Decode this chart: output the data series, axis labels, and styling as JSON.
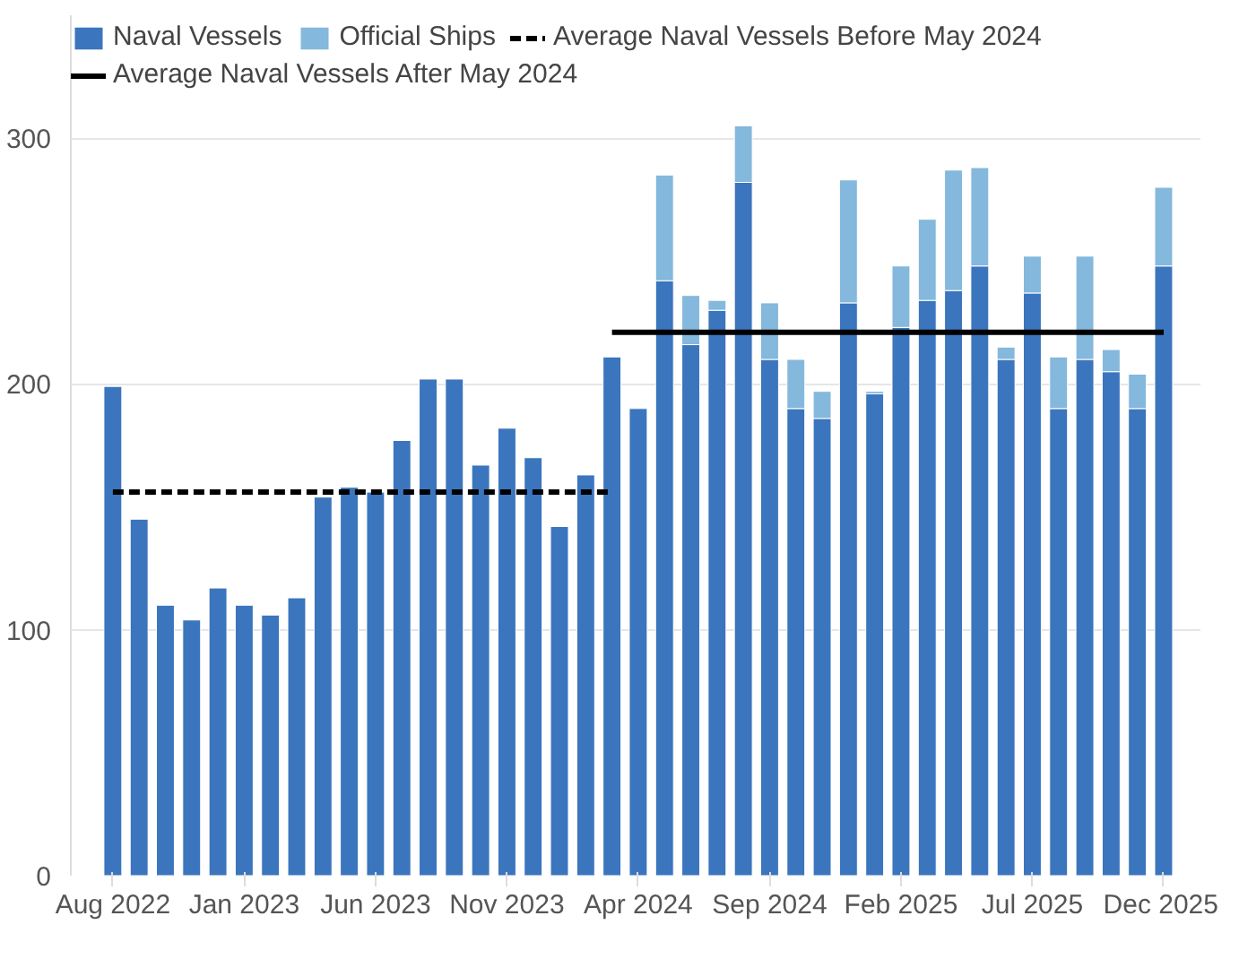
{
  "chart_data": {
    "type": "bar",
    "stacked": true,
    "categories": [
      "Aug 2022",
      null,
      null,
      null,
      null,
      "Jan 2023",
      null,
      null,
      null,
      null,
      "Jun 2023",
      null,
      null,
      null,
      null,
      "Nov 2023",
      null,
      null,
      null,
      null,
      "Apr 2024",
      null,
      null,
      null,
      null,
      "Sep 2024",
      null,
      null,
      null,
      null,
      "Feb 2025",
      null,
      null,
      null,
      null,
      "Jul 2025",
      null,
      null,
      null,
      null,
      "Dec 2025"
    ],
    "series": [
      {
        "name": "Naval Vessels",
        "color": "#3b75bd",
        "values": [
          199,
          145,
          110,
          104,
          117,
          110,
          106,
          113,
          154,
          158,
          156,
          177,
          202,
          202,
          167,
          182,
          170,
          142,
          163,
          211,
          190,
          242,
          216,
          230,
          282,
          210,
          190,
          186,
          233,
          196,
          223,
          234,
          238,
          248,
          210,
          237,
          190,
          210,
          205,
          190,
          248
        ]
      },
      {
        "name": "Official Ships",
        "color": "#84b8dc",
        "values": [
          null,
          null,
          null,
          null,
          null,
          null,
          null,
          null,
          null,
          null,
          null,
          null,
          null,
          null,
          null,
          null,
          null,
          null,
          null,
          null,
          null,
          43,
          20,
          4,
          23,
          23,
          20,
          11,
          50,
          1,
          25,
          33,
          49,
          40,
          5,
          15,
          21,
          42,
          9,
          14,
          32
        ]
      },
      {
        "name": "Average Naval Vessels Before May 2024",
        "type": "line",
        "color": "#000000",
        "line_style": "dashed",
        "values": [
          156,
          156,
          156,
          156,
          156,
          156,
          156,
          156,
          156,
          156,
          156,
          156,
          156,
          156,
          156,
          156,
          156,
          156,
          156,
          156,
          null,
          null,
          null,
          null,
          null,
          null,
          null,
          null,
          null,
          null,
          null,
          null,
          null,
          null,
          null,
          null,
          null,
          null,
          null,
          null,
          null
        ]
      },
      {
        "name": "Average Naval Vessels After May 2024",
        "type": "line",
        "color": "#000000",
        "line_style": "solid",
        "values": [
          null,
          null,
          null,
          null,
          null,
          null,
          null,
          null,
          null,
          null,
          null,
          null,
          null,
          null,
          null,
          null,
          null,
          null,
          null,
          221,
          221,
          221,
          221,
          221,
          221,
          221,
          221,
          221,
          221,
          221,
          221,
          221,
          221,
          221,
          221,
          221,
          221,
          221,
          221,
          221,
          221
        ]
      }
    ],
    "ylim": [
      0,
      350
    ],
    "yticks": [
      0,
      100,
      200,
      300
    ],
    "grid": "y",
    "legend": "top"
  }
}
